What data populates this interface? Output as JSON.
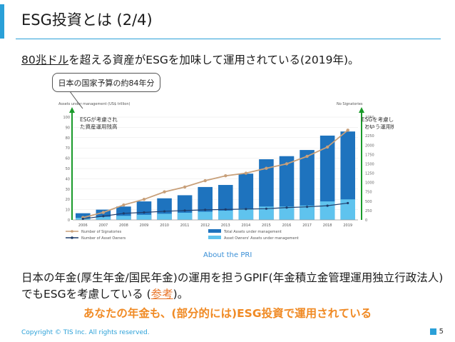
{
  "slide": {
    "title": "ESG投資とは (2/4)",
    "headline_underlined": "80兆ドル",
    "headline_rest": "を超える資産がESGを加味して運用されている(2019年)。",
    "callout": "日本の国家予算の約84年分",
    "source_link": "About the PRI",
    "body_before": "日本の年金(厚生年金/国民年金)の運用を担うGPIF(年金積立金管理運用独立行政法人)でもESGを考慮している (",
    "body_link": "参考",
    "body_after": ")。",
    "emphasis": "あなたの年金も、(部分的には)ESG投資で運用されている",
    "copyright": "Copyright © TIS Inc. All rights reserved.",
    "page_number": "5"
  },
  "colors": {
    "accent": "#2aa0d8",
    "orange": "#f08a24",
    "bar_dark": "#1e73be",
    "bar_light": "#5fc3ee",
    "signatories": "#c8a07a",
    "owners": "#1f3d6b"
  },
  "chart_data": {
    "type": "bar",
    "header_left": "Assets under management (US$ trillion)",
    "header_right": "No Signatories",
    "annotation_left": "ESGが考慮され\nた資産運用残高",
    "annotation_right": "ESGを考慮します\nという運用機関",
    "categories": [
      "2006",
      "2007",
      "2008",
      "2009",
      "2010",
      "2011",
      "2012",
      "2013",
      "2014",
      "2015",
      "2016",
      "2017",
      "2018",
      "2019"
    ],
    "ylim_left": [
      0,
      100
    ],
    "yticks_left": [
      0,
      10,
      20,
      30,
      40,
      50,
      60,
      70,
      80,
      90,
      100
    ],
    "ylim_right": [
      0,
      2750
    ],
    "yticks_right": [
      0,
      250,
      500,
      750,
      1000,
      1250,
      1500,
      1750,
      2000,
      2250,
      2500,
      2750
    ],
    "series": [
      {
        "name": "Total Assets under management",
        "axis": "left",
        "kind": "bar",
        "values": [
          6.5,
          10,
          13,
          18,
          21,
          24,
          32,
          34,
          45,
          59,
          62,
          68,
          82,
          86
        ]
      },
      {
        "name": "Asset Owners' Assets under management",
        "axis": "left",
        "kind": "bar",
        "values": [
          2,
          3,
          4,
          5,
          6,
          7,
          8,
          9,
          11,
          13,
          13,
          14,
          18,
          20
        ]
      },
      {
        "name": "Number of Signatories",
        "axis": "right",
        "kind": "line",
        "values": [
          63,
          200,
          400,
          550,
          750,
          880,
          1050,
          1180,
          1250,
          1380,
          1500,
          1700,
          1950,
          2400
        ]
      },
      {
        "name": "Number of Asset Owners",
        "axis": "right",
        "kind": "line",
        "values": [
          30,
          100,
          175,
          200,
          230,
          250,
          270,
          280,
          290,
          300,
          330,
          350,
          380,
          450
        ]
      }
    ]
  }
}
